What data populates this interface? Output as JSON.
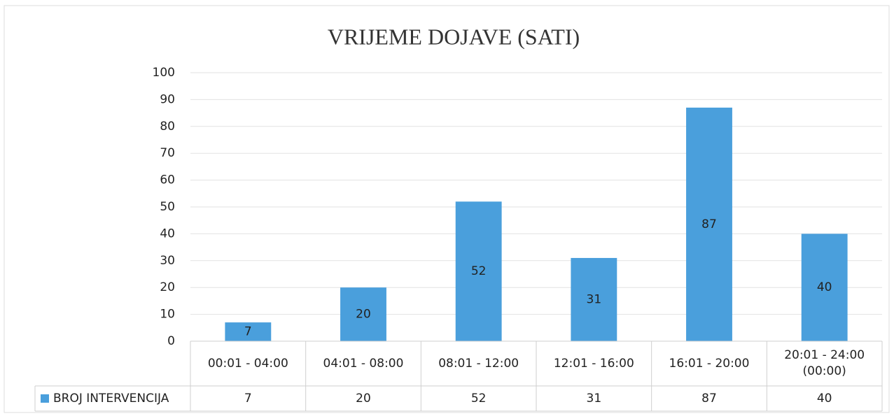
{
  "chart_data": {
    "type": "bar",
    "title": "VRIJEME DOJAVE (SATI)",
    "categories": [
      "00:01 - 04:00",
      "04:01 - 08:00",
      "08:01 - 12:00",
      "12:01 - 16:00",
      "16:01 - 20:00",
      "20:01 - 24:00 (00:00)"
    ],
    "series": [
      {
        "name": "BROJ INTERVENCIJA",
        "color": "#4a9fdc",
        "values": [
          7,
          20,
          52,
          31,
          87,
          40
        ]
      }
    ],
    "ylim": [
      0,
      100
    ],
    "yticks": [
      0,
      10,
      20,
      30,
      40,
      50,
      60,
      70,
      80,
      90,
      100
    ],
    "grid": true,
    "data_labels": true,
    "data_table": true
  }
}
